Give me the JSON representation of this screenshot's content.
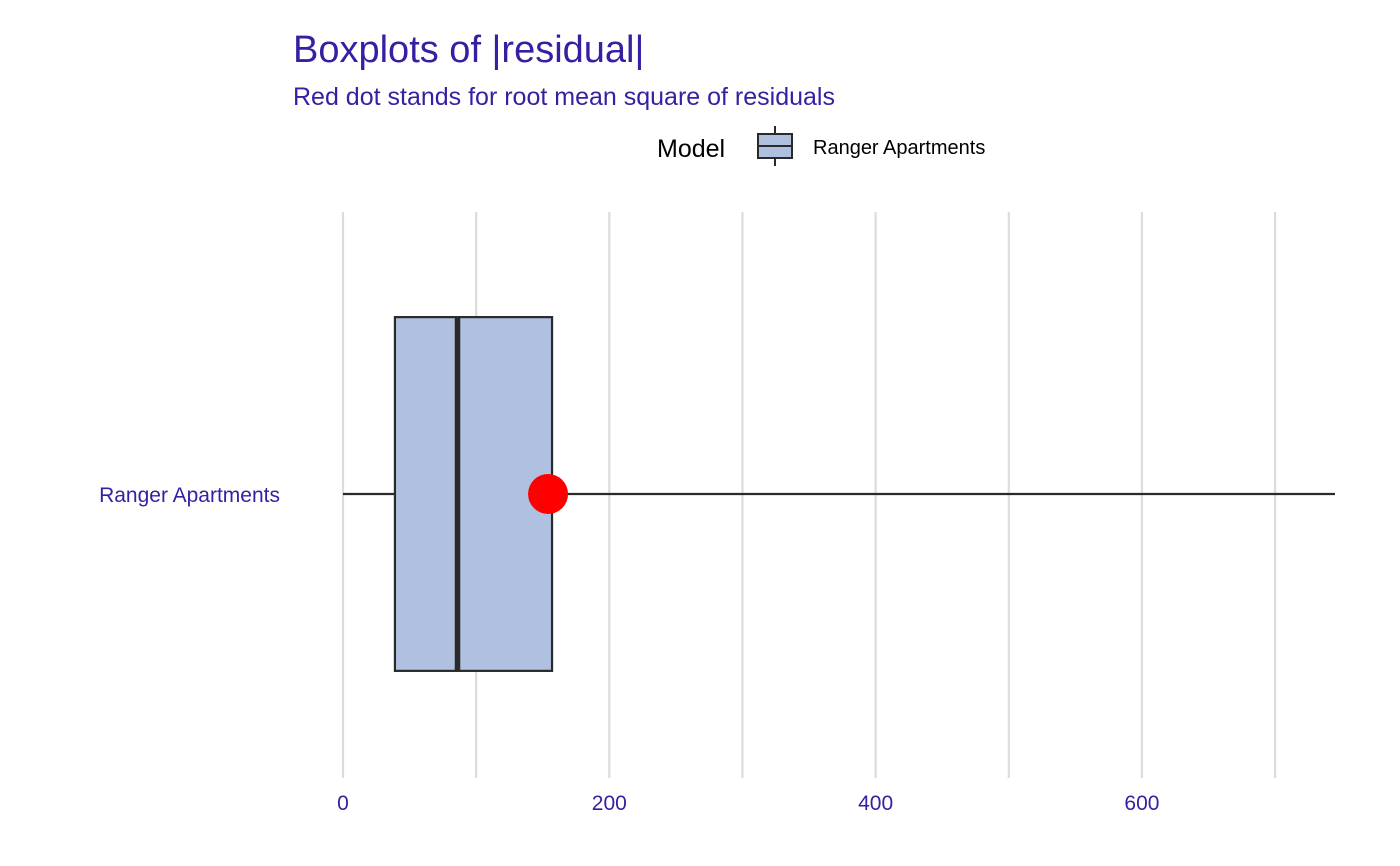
{
  "colors": {
    "text_accent": "#371ea3",
    "box_fill": "#aebfe0",
    "box_stroke": "#2a2a2a",
    "grid": "#dcdcdc",
    "rms_dot": "#ff0000",
    "legend_title": "#000000"
  },
  "chart_data": {
    "type": "boxplot",
    "title": "Boxplots of |residual|",
    "subtitle": "Red dot stands for root mean square of residuals",
    "legend": {
      "title": "Model",
      "entries": [
        "Ranger Apartments"
      ],
      "position": "top"
    },
    "xlim": [
      0,
      745
    ],
    "x_ticks": [
      0,
      200,
      400,
      600
    ],
    "x_tick_labels": [
      "0",
      "200",
      "400",
      "600"
    ],
    "x_minor_gridlines": [
      100,
      300,
      500,
      700
    ],
    "grid": true,
    "orientation": "horizontal",
    "series": [
      {
        "name": "Ranger Apartments",
        "whisker_low": 0,
        "q1": 39,
        "median": 86,
        "q3": 157,
        "whisker_high": 745,
        "rms": 154
      }
    ]
  }
}
